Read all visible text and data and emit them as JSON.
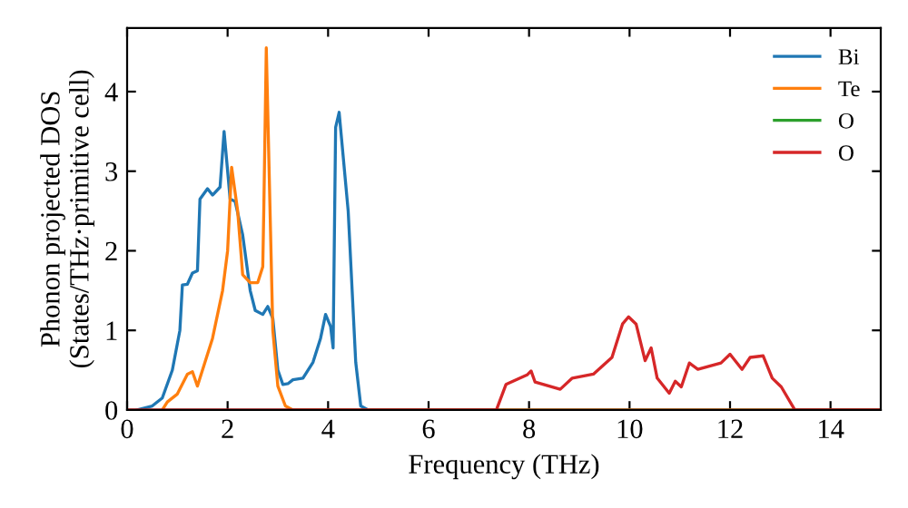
{
  "chart_data": {
    "type": "line",
    "xlabel": "Frequency (THz)",
    "ylabel": "Phonon projected DOS\n(States/THz·primitive cell)",
    "xlim": [
      0,
      15
    ],
    "ylim": [
      0,
      4.8
    ],
    "xticks": [
      0,
      2,
      4,
      6,
      8,
      10,
      12,
      14
    ],
    "yticks": [
      0,
      1,
      2,
      3,
      4
    ],
    "grid": false,
    "legend": "top right",
    "marker": "none",
    "line_style": "solid",
    "series": [
      {
        "name": "Bi",
        "color": "#1f77b4",
        "x": [
          0.2,
          0.5,
          0.7,
          0.9,
          1.05,
          1.1,
          1.2,
          1.3,
          1.4,
          1.45,
          1.6,
          1.7,
          1.85,
          1.93,
          2.05,
          2.15,
          2.3,
          2.45,
          2.55,
          2.7,
          2.8,
          2.9,
          3.0,
          3.1,
          3.2,
          3.3,
          3.5,
          3.7,
          3.85,
          3.95,
          4.05,
          4.1,
          4.15,
          4.22,
          4.4,
          4.55,
          4.65,
          4.8,
          15
        ],
        "values": [
          0,
          0.05,
          0.15,
          0.5,
          1.0,
          1.57,
          1.58,
          1.72,
          1.75,
          2.65,
          2.78,
          2.7,
          2.8,
          3.5,
          2.65,
          2.62,
          2.2,
          1.5,
          1.25,
          1.2,
          1.3,
          1.15,
          0.5,
          0.32,
          0.33,
          0.38,
          0.4,
          0.6,
          0.9,
          1.2,
          1.05,
          0.78,
          3.55,
          3.74,
          2.5,
          0.6,
          0.05,
          0,
          0
        ]
      },
      {
        "name": "Te",
        "color": "#ff7f0e",
        "x": [
          0.7,
          0.8,
          1.0,
          1.2,
          1.3,
          1.4,
          1.55,
          1.7,
          1.9,
          2.0,
          2.08,
          2.2,
          2.3,
          2.45,
          2.6,
          2.7,
          2.72,
          2.77,
          2.9,
          3.0,
          3.15,
          3.3,
          15
        ],
        "values": [
          0,
          0.1,
          0.2,
          0.45,
          0.48,
          0.3,
          0.6,
          0.9,
          1.5,
          2.0,
          3.05,
          2.5,
          1.7,
          1.6,
          1.6,
          1.8,
          2.5,
          4.55,
          1.0,
          0.3,
          0.05,
          0,
          0
        ]
      },
      {
        "name": "O",
        "color": "#2ca02c"
      },
      {
        "name": "O",
        "color": "#d62728",
        "x": [
          0,
          7.35,
          7.54,
          7.96,
          8.04,
          8.12,
          8.62,
          8.86,
          9.28,
          9.65,
          9.86,
          9.98,
          10.13,
          10.31,
          10.43,
          10.55,
          10.79,
          10.91,
          11.03,
          11.19,
          11.36,
          11.82,
          12.0,
          12.24,
          12.4,
          12.66,
          12.84,
          13.02,
          13.29,
          15
        ],
        "values": [
          0,
          0,
          0.32,
          0.44,
          0.49,
          0.35,
          0.26,
          0.4,
          0.45,
          0.66,
          1.08,
          1.17,
          1.08,
          0.62,
          0.78,
          0.4,
          0.21,
          0.36,
          0.29,
          0.59,
          0.51,
          0.59,
          0.7,
          0.51,
          0.66,
          0.68,
          0.4,
          0.29,
          0,
          0
        ]
      }
    ]
  }
}
